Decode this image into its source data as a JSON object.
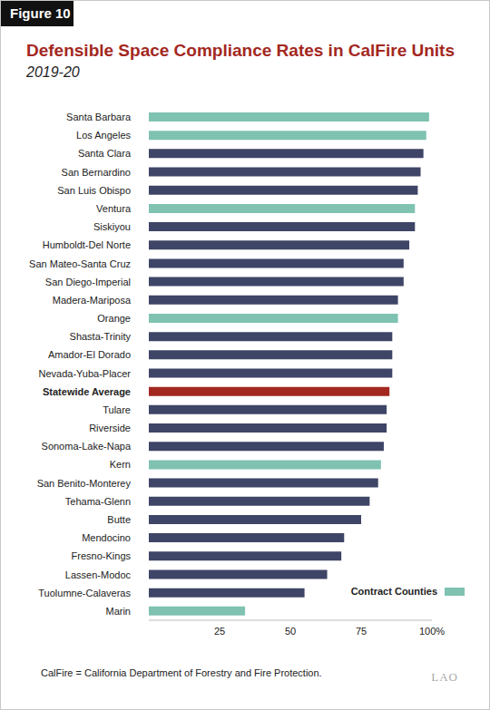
{
  "chart_data": {
    "type": "bar",
    "orientation": "horizontal",
    "figure_label": "Figure 10",
    "title": "Defensible Space Compliance Rates in CalFire Units",
    "subtitle": "2019-20",
    "footnote": "CalFire = California Department of Forestry and Fire Protection.",
    "logo": "LAO",
    "categories": [
      "Santa Barbara",
      "Los Angeles",
      "Santa Clara",
      "San Bernardino",
      "San Luis Obispo",
      "Ventura",
      "Siskiyou",
      "Humboldt-Del Norte",
      "San Mateo-Santa Cruz",
      "San Diego-Imperial",
      "Madera-Mariposa",
      "Orange",
      "Shasta-Trinity",
      "Amador-El Dorado",
      "Nevada-Yuba-Placer",
      "Statewide Average",
      "Tulare",
      "Riverside",
      "Sonoma-Lake-Napa",
      "Kern",
      "San Benito-Monterey",
      "Tehama-Glenn",
      "Butte",
      "Mendocino",
      "Fresno-Kings",
      "Lassen-Modoc",
      "Tuolumne-Calaveras",
      "Marin"
    ],
    "values": [
      99,
      98,
      97,
      96,
      95,
      94,
      94,
      92,
      90,
      90,
      88,
      88,
      86,
      86,
      86,
      85,
      84,
      84,
      83,
      82,
      81,
      78,
      75,
      69,
      68,
      63,
      55,
      34
    ],
    "colors": [
      "#7fc2b1",
      "#7fc2b1",
      "#3e4566",
      "#3e4566",
      "#3e4566",
      "#7fc2b1",
      "#3e4566",
      "#3e4566",
      "#3e4566",
      "#3e4566",
      "#3e4566",
      "#7fc2b1",
      "#3e4566",
      "#3e4566",
      "#3e4566",
      "#a3281f",
      "#3e4566",
      "#3e4566",
      "#3e4566",
      "#7fc2b1",
      "#3e4566",
      "#3e4566",
      "#3e4566",
      "#3e4566",
      "#3e4566",
      "#3e4566",
      "#3e4566",
      "#7fc2b1"
    ],
    "xlim": [
      0,
      100
    ],
    "xticks": [
      25,
      50,
      75,
      {
        "value": 100,
        "label": "100%"
      }
    ],
    "grid": false,
    "legend": "lower right",
    "legend_items": [
      {
        "name": "Contract Counties",
        "color": "#7fc2b1"
      }
    ]
  }
}
